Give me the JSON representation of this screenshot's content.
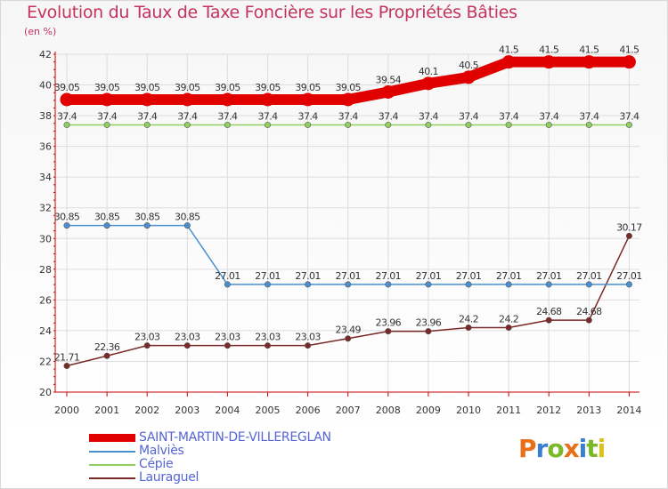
{
  "title": "Evolution du Taux de Taxe Foncière sur les Propriétés Bâties",
  "unit_label": "(en %)",
  "logo_text": "Proxiti",
  "logo_colors": [
    "#e8701a",
    "#3a7fd0",
    "#7cb928",
    "#e8701a",
    "#3a7fd0",
    "#7cb928",
    "#d9c21b"
  ],
  "chart_data": {
    "type": "line",
    "x": [
      "2000",
      "2001",
      "2002",
      "2003",
      "2004",
      "2005",
      "2006",
      "2007",
      "2008",
      "2009",
      "2010",
      "2011",
      "2012",
      "2013",
      "2014"
    ],
    "ylim": [
      20,
      42
    ],
    "yticks": [
      "20",
      "22",
      "24",
      "26",
      "28",
      "30",
      "32",
      "34",
      "36",
      "38",
      "40",
      "42"
    ],
    "grid": true,
    "series": [
      {
        "name": "SAINT-MARTIN-DE-VILLEREGLAN",
        "color": "#e00000",
        "values": [
          39.05,
          39.05,
          39.05,
          39.05,
          39.05,
          39.05,
          39.05,
          39.05,
          39.54,
          40.1,
          40.5,
          41.5,
          41.5,
          41.5,
          41.5
        ],
        "labels": [
          "39.05",
          "39.05",
          "39.05",
          "39.05",
          "39.05",
          "39.05",
          "39.05",
          "39.05",
          "39.54",
          "40.1",
          "40.5",
          "41.5",
          "41.5",
          "41.5",
          "41.5"
        ]
      },
      {
        "name": "Malviès",
        "color": "#4a90d0",
        "values": [
          30.85,
          30.85,
          30.85,
          30.85,
          27.01,
          27.01,
          27.01,
          27.01,
          27.01,
          27.01,
          27.01,
          27.01,
          27.01,
          27.01,
          27.01
        ],
        "labels": [
          "30.85",
          "30.85",
          "30.85",
          "30.85",
          "27.01",
          "27.01",
          "27.01",
          "27.01",
          "27.01",
          "27.01",
          "27.01",
          "27.01",
          "27.01",
          "27.01",
          "27.01"
        ]
      },
      {
        "name": "Cépie",
        "color": "#90d060",
        "values": [
          37.4,
          37.4,
          37.4,
          37.4,
          37.4,
          37.4,
          37.4,
          37.4,
          37.4,
          37.4,
          37.4,
          37.4,
          37.4,
          37.4,
          37.4
        ],
        "labels": [
          "37.4",
          "37.4",
          "37.4",
          "37.4",
          "37.4",
          "37.4",
          "37.4",
          "37.4",
          "37.4",
          "37.4",
          "37.4",
          "37.4",
          "37.4",
          "37.4",
          "37.4"
        ]
      },
      {
        "name": "Lauraguel",
        "color": "#7a2828",
        "values": [
          21.71,
          22.36,
          23.03,
          23.03,
          23.03,
          23.03,
          23.03,
          23.49,
          23.96,
          23.96,
          24.2,
          24.2,
          24.68,
          24.68,
          30.17
        ],
        "labels": [
          "21.71",
          "22.36",
          "23.03",
          "23.03",
          "23.03",
          "23.03",
          "23.03",
          "23.49",
          "23.96",
          "23.96",
          "24.2",
          "24.2",
          "24.68",
          "24.68",
          "30.17"
        ]
      }
    ]
  }
}
